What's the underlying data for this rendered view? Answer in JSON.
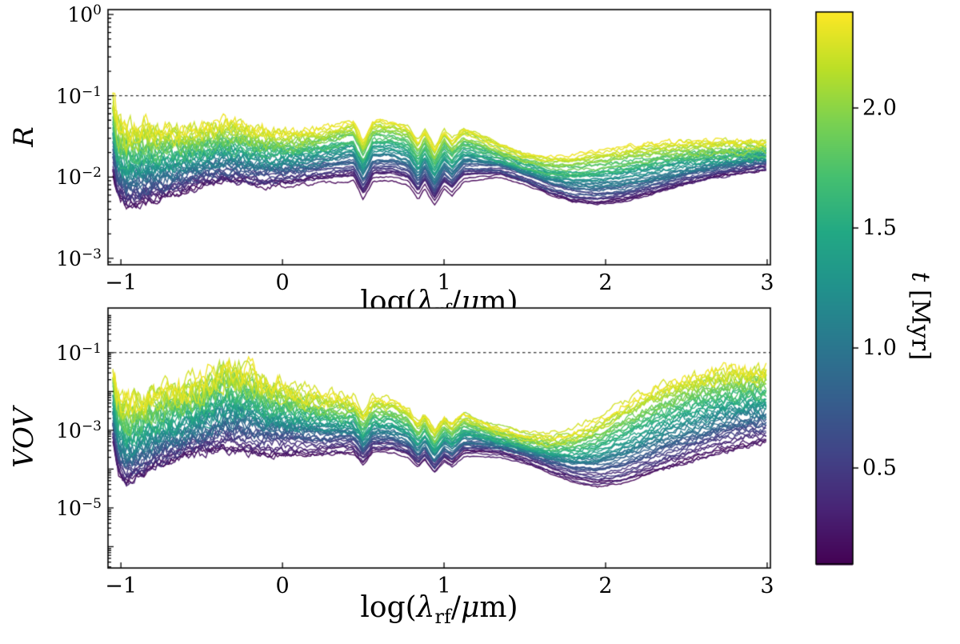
{
  "style": {
    "background": "#ffffff",
    "axis_color": "#000000"
  },
  "chart_data": {
    "type": "line",
    "description": "Two stacked log-scale panels of many spectral curves colored by time t with a viridis colorbar; dashed reference line at 1e-1 in both panels.",
    "xlabel": "log(λ_rf/μm)",
    "xlabel_parts": {
      "p1": "log(",
      "lambda": "λ",
      "sub": "rf",
      "p2": "/",
      "mu": "μ",
      "p3": "m)"
    },
    "xlim": [
      -1.08,
      3.02
    ],
    "x_ticks": {
      "values": [
        -1,
        0,
        1,
        2,
        3
      ],
      "labels": [
        "−1",
        "0",
        "1",
        "2",
        "3"
      ]
    },
    "reference_line": {
      "value_log10": -1,
      "style": "dashed",
      "color": "#000000"
    },
    "line_width": 1.4,
    "series": {
      "count": 46,
      "t_min": 0.12,
      "t_max": 2.35,
      "color_by": "t",
      "units": "Myr"
    },
    "panels": [
      {
        "name": "R",
        "ylabel": "R",
        "yscale": "log",
        "ylim_log10": [
          -3.08,
          0.06
        ],
        "y_ticks": {
          "base": "10",
          "values_log10": [
            0,
            -1,
            -2,
            -3
          ],
          "exponents": [
            "0",
            "−1",
            "−2",
            "−3"
          ]
        },
        "y_major_unlabeled_log10": [],
        "envelope_low_log10": [
          [
            -1.05,
            -1.95
          ],
          [
            -1.02,
            -2.25
          ],
          [
            -0.97,
            -2.38
          ],
          [
            -0.9,
            -2.36
          ],
          [
            -0.8,
            -2.3
          ],
          [
            -0.65,
            -2.22
          ],
          [
            -0.5,
            -2.12
          ],
          [
            -0.38,
            -2.06
          ],
          [
            -0.25,
            -2.08
          ],
          [
            -0.12,
            -2.12
          ],
          [
            0.0,
            -2.1
          ],
          [
            0.15,
            -2.06
          ],
          [
            0.3,
            -2.02
          ],
          [
            0.44,
            -2.0
          ],
          [
            0.5,
            -2.22
          ],
          [
            0.56,
            -2.0
          ],
          [
            0.68,
            -1.99
          ],
          [
            0.78,
            -2.05
          ],
          [
            0.84,
            -2.22
          ],
          [
            0.88,
            -2.08
          ],
          [
            0.94,
            -2.3
          ],
          [
            1.0,
            -2.1
          ],
          [
            1.05,
            -2.18
          ],
          [
            1.12,
            -2.02
          ],
          [
            1.2,
            -2.0
          ],
          [
            1.35,
            -1.98
          ],
          [
            1.5,
            -2.08
          ],
          [
            1.65,
            -2.22
          ],
          [
            1.8,
            -2.32
          ],
          [
            1.95,
            -2.35
          ],
          [
            2.1,
            -2.32
          ],
          [
            2.3,
            -2.22
          ],
          [
            2.5,
            -2.1
          ],
          [
            2.7,
            -2.0
          ],
          [
            2.85,
            -1.94
          ],
          [
            3.0,
            -1.9
          ]
        ],
        "envelope_high_log10": [
          [
            -1.05,
            -1.05
          ],
          [
            -1.02,
            -1.3
          ],
          [
            -0.97,
            -1.42
          ],
          [
            -0.9,
            -1.4
          ],
          [
            -0.8,
            -1.42
          ],
          [
            -0.65,
            -1.45
          ],
          [
            -0.5,
            -1.42
          ],
          [
            -0.38,
            -1.36
          ],
          [
            -0.25,
            -1.38
          ],
          [
            -0.12,
            -1.44
          ],
          [
            0.0,
            -1.47
          ],
          [
            0.15,
            -1.45
          ],
          [
            0.3,
            -1.4
          ],
          [
            0.44,
            -1.33
          ],
          [
            0.5,
            -1.58
          ],
          [
            0.56,
            -1.32
          ],
          [
            0.68,
            -1.33
          ],
          [
            0.78,
            -1.4
          ],
          [
            0.84,
            -1.58
          ],
          [
            0.88,
            -1.42
          ],
          [
            0.94,
            -1.66
          ],
          [
            1.0,
            -1.44
          ],
          [
            1.05,
            -1.55
          ],
          [
            1.12,
            -1.42
          ],
          [
            1.2,
            -1.48
          ],
          [
            1.35,
            -1.62
          ],
          [
            1.5,
            -1.72
          ],
          [
            1.65,
            -1.76
          ],
          [
            1.8,
            -1.74
          ],
          [
            1.95,
            -1.7
          ],
          [
            2.1,
            -1.66
          ],
          [
            2.3,
            -1.62
          ],
          [
            2.5,
            -1.6
          ],
          [
            2.7,
            -1.6
          ],
          [
            2.85,
            -1.6
          ],
          [
            3.0,
            -1.58
          ]
        ],
        "noise_profile": [
          [
            -1.05,
            0.16
          ],
          [
            -0.7,
            0.1
          ],
          [
            -0.3,
            0.08
          ],
          [
            0.0,
            0.06
          ],
          [
            0.3,
            0.03
          ],
          [
            0.8,
            0.02
          ],
          [
            1.5,
            0.015
          ],
          [
            2.0,
            0.02
          ],
          [
            2.6,
            0.03
          ],
          [
            3.0,
            0.035
          ]
        ],
        "series_offset_sd": 0.07,
        "wobble_amp": 0.05
      },
      {
        "name": "VOV",
        "ylabel": "VOV",
        "yscale": "log",
        "ylim_log10": [
          -6.55,
          0.15
        ],
        "y_ticks": {
          "base": "10",
          "values_log10": [
            -1,
            -3,
            -5
          ],
          "exponents": [
            "−1",
            "−3",
            "−5"
          ]
        },
        "y_major_unlabeled_log10": [
          -2,
          -4,
          -6
        ],
        "envelope_low_log10": [
          [
            -1.05,
            -3.3
          ],
          [
            -1.02,
            -4.1
          ],
          [
            -0.97,
            -4.45
          ],
          [
            -0.9,
            -4.3
          ],
          [
            -0.8,
            -4.05
          ],
          [
            -0.65,
            -3.8
          ],
          [
            -0.5,
            -3.62
          ],
          [
            -0.38,
            -3.52
          ],
          [
            -0.25,
            -3.55
          ],
          [
            -0.12,
            -3.62
          ],
          [
            0.0,
            -3.6
          ],
          [
            0.15,
            -3.58
          ],
          [
            0.3,
            -3.56
          ],
          [
            0.44,
            -3.55
          ],
          [
            0.5,
            -3.85
          ],
          [
            0.56,
            -3.55
          ],
          [
            0.68,
            -3.55
          ],
          [
            0.78,
            -3.68
          ],
          [
            0.84,
            -3.95
          ],
          [
            0.88,
            -3.75
          ],
          [
            0.94,
            -4.1
          ],
          [
            1.0,
            -3.78
          ],
          [
            1.05,
            -3.9
          ],
          [
            1.12,
            -3.62
          ],
          [
            1.2,
            -3.58
          ],
          [
            1.35,
            -3.6
          ],
          [
            1.5,
            -3.78
          ],
          [
            1.65,
            -4.05
          ],
          [
            1.8,
            -4.3
          ],
          [
            1.95,
            -4.45
          ],
          [
            2.1,
            -4.4
          ],
          [
            2.3,
            -4.15
          ],
          [
            2.5,
            -3.85
          ],
          [
            2.7,
            -3.55
          ],
          [
            2.85,
            -3.38
          ],
          [
            3.0,
            -3.28
          ]
        ],
        "envelope_high_log10": [
          [
            -1.05,
            -1.35
          ],
          [
            -1.02,
            -2.1
          ],
          [
            -0.97,
            -2.35
          ],
          [
            -0.9,
            -2.2
          ],
          [
            -0.8,
            -2.1
          ],
          [
            -0.65,
            -2.0
          ],
          [
            -0.5,
            -1.75
          ],
          [
            -0.38,
            -1.45
          ],
          [
            -0.28,
            -1.35
          ],
          [
            -0.2,
            -1.5
          ],
          [
            -0.12,
            -1.7
          ],
          [
            0.0,
            -1.85
          ],
          [
            0.15,
            -2.05
          ],
          [
            0.3,
            -2.2
          ],
          [
            0.44,
            -2.25
          ],
          [
            0.5,
            -2.6
          ],
          [
            0.56,
            -2.25
          ],
          [
            0.68,
            -2.3
          ],
          [
            0.78,
            -2.5
          ],
          [
            0.84,
            -2.85
          ],
          [
            0.88,
            -2.6
          ],
          [
            0.94,
            -3.05
          ],
          [
            1.0,
            -2.7
          ],
          [
            1.05,
            -2.85
          ],
          [
            1.12,
            -2.6
          ],
          [
            1.2,
            -2.75
          ],
          [
            1.35,
            -3.0
          ],
          [
            1.5,
            -3.15
          ],
          [
            1.65,
            -3.2
          ],
          [
            1.8,
            -3.1
          ],
          [
            1.95,
            -2.8
          ],
          [
            2.1,
            -2.4
          ],
          [
            2.3,
            -1.95
          ],
          [
            2.5,
            -1.65
          ],
          [
            2.7,
            -1.5
          ],
          [
            2.85,
            -1.45
          ],
          [
            3.0,
            -1.45
          ]
        ],
        "noise_profile": [
          [
            -1.05,
            0.35
          ],
          [
            -0.7,
            0.28
          ],
          [
            -0.3,
            0.3
          ],
          [
            0.0,
            0.22
          ],
          [
            0.3,
            0.12
          ],
          [
            0.8,
            0.05
          ],
          [
            1.5,
            0.04
          ],
          [
            2.0,
            0.06
          ],
          [
            2.4,
            0.12
          ],
          [
            3.0,
            0.18
          ]
        ],
        "series_offset_sd": 0.13,
        "wobble_amp": 0.09
      }
    ],
    "colorbar": {
      "label_var": "t",
      "label_unit": "[Myr]",
      "range": [
        0.1,
        2.4
      ],
      "ticks": {
        "values": [
          0.5,
          1.0,
          1.5,
          2.0
        ],
        "labels": [
          "0.5",
          "1.0",
          "1.5",
          "2.0"
        ]
      },
      "colormap": "viridis",
      "stops": [
        {
          "pos": 0.0,
          "color": "#440154"
        },
        {
          "pos": 0.1,
          "color": "#482475"
        },
        {
          "pos": 0.2,
          "color": "#414487"
        },
        {
          "pos": 0.3,
          "color": "#355f8d"
        },
        {
          "pos": 0.4,
          "color": "#2a788e"
        },
        {
          "pos": 0.5,
          "color": "#21918c"
        },
        {
          "pos": 0.6,
          "color": "#22a884"
        },
        {
          "pos": 0.7,
          "color": "#44bf70"
        },
        {
          "pos": 0.8,
          "color": "#7ad151"
        },
        {
          "pos": 0.9,
          "color": "#bddf26"
        },
        {
          "pos": 1.0,
          "color": "#fde725"
        }
      ]
    }
  }
}
